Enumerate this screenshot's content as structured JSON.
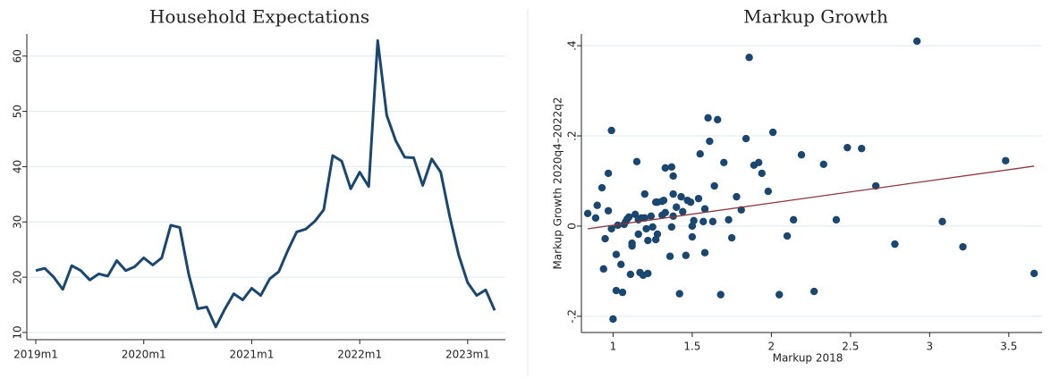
{
  "chart_data": [
    {
      "type": "line",
      "title": "Household Expectations",
      "categories": [
        "2019m1",
        null,
        null,
        null,
        null,
        null,
        null,
        null,
        null,
        null,
        null,
        null,
        "2020m1",
        null,
        null,
        null,
        null,
        null,
        null,
        null,
        null,
        null,
        null,
        null,
        "2021m1",
        null,
        null,
        null,
        null,
        null,
        null,
        null,
        null,
        null,
        null,
        null,
        "2022m1",
        null,
        null,
        null,
        null,
        null,
        null,
        null,
        null,
        null,
        null,
        null,
        "2023m1",
        null,
        null,
        null
      ],
      "values": [
        21.2,
        21.6,
        20,
        17.8,
        22.1,
        21.2,
        19.5,
        20.6,
        20.2,
        23,
        21.2,
        21.9,
        23.5,
        22.2,
        23.5,
        29.4,
        29,
        20.5,
        14.3,
        14.6,
        11,
        14.2,
        17,
        15.9,
        18,
        16.7,
        19.7,
        21,
        24.8,
        28.2,
        28.7,
        30.1,
        32.2,
        42,
        41,
        36,
        39,
        36.4,
        62.8,
        49.3,
        44.7,
        41.7,
        41.6,
        36.6,
        41.4,
        39,
        31,
        24,
        19,
        16.7,
        17.7,
        14
      ],
      "color": "#1a476f",
      "ylim": [
        8.7,
        64
      ],
      "yticks": [
        10,
        20,
        30,
        40,
        50,
        60
      ],
      "grid": true
    },
    {
      "type": "scatter",
      "title": "Markup Growth",
      "x_label": "Markup 2018",
      "y_label": "Markup Growth 2020q4–2022q2",
      "x": [
        0.84,
        0.89,
        0.9,
        0.93,
        0.95,
        0.94,
        0.97,
        0.97,
        0.99,
        0.99,
        1.0,
        1.02,
        1.02,
        1.05,
        1.03,
        1.07,
        1.06,
        1.08,
        1.09,
        1.1,
        1.11,
        1.12,
        1.12,
        1.14,
        1.15,
        1.16,
        1.16,
        1.17,
        1.18,
        1.2,
        1.19,
        1.2,
        1.22,
        1.21,
        1.22,
        1.24,
        1.25,
        1.27,
        1.27,
        1.28,
        1.28,
        1.31,
        1.31,
        1.32,
        1.33,
        1.33,
        1.36,
        1.37,
        1.37,
        1.38,
        1.38,
        1.38,
        1.4,
        1.42,
        1.43,
        1.44,
        1.46,
        1.47,
        1.49,
        1.5,
        1.5,
        1.51,
        1.54,
        1.55,
        1.57,
        1.58,
        1.58,
        1.6,
        1.61,
        1.63,
        1.64,
        1.66,
        1.68,
        1.7,
        1.73,
        1.75,
        1.78,
        1.81,
        1.84,
        1.86,
        1.89,
        1.92,
        1.94,
        1.98,
        2.01,
        2.05,
        2.1,
        2.14,
        2.19,
        2.27,
        2.33,
        2.41,
        2.48,
        2.57,
        2.66,
        2.78,
        2.92,
        3.08,
        3.21,
        3.48,
        3.66
      ],
      "values": [
        0.028,
        0.018,
        0.046,
        0.085,
        -0.028,
        -0.095,
        0.117,
        0.034,
        0.212,
        -0.006,
        -0.206,
        -0.063,
        -0.143,
        -0.085,
        0.002,
        0.004,
        -0.147,
        0.01,
        0.016,
        0.02,
        -0.107,
        -0.038,
        -0.044,
        0.026,
        0.143,
        0.014,
        -0.018,
        -0.103,
        0.018,
        0.018,
        -0.109,
        0.071,
        -0.105,
        -0.006,
        -0.032,
        0.022,
        -0.002,
        0.053,
        -0.03,
        -0.018,
        0.053,
        0.055,
        0.024,
        0.057,
        0.03,
        0.129,
        -0.067,
        -0.002,
        0.131,
        0.111,
        0.022,
        0.071,
        0.042,
        -0.15,
        0.065,
        0.032,
        -0.065,
        0.057,
        0.053,
        -0.024,
        0.0,
        0.012,
        0.061,
        0.16,
        0.01,
        -0.059,
        0.038,
        0.24,
        0.188,
        0.01,
        0.089,
        0.236,
        -0.152,
        0.141,
        0.014,
        -0.026,
        0.065,
        0.036,
        0.194,
        0.374,
        0.135,
        0.141,
        0.117,
        0.077,
        0.208,
        -0.152,
        -0.022,
        0.014,
        0.158,
        -0.145,
        0.137,
        0.014,
        0.174,
        0.172,
        0.089,
        -0.04,
        0.41,
        0.01,
        -0.046,
        0.145,
        -0.105
      ],
      "color": "#1a476f",
      "fit": {
        "x": [
          0.84,
          3.66
        ],
        "values": [
          -0.006,
          0.133
        ],
        "color": "#90353b"
      },
      "xlim": [
        0.8,
        3.71
      ],
      "ylim": [
        -0.236,
        0.426
      ],
      "xticks": [
        1,
        1.5,
        2,
        2.5,
        3,
        3.5
      ],
      "yticks": [
        {
          "value": -0.2,
          "label": "-.2"
        },
        0,
        {
          "value": 0.2,
          "label": ".2"
        },
        {
          "value": 0.4,
          "label": ".4"
        }
      ],
      "grid": true
    }
  ]
}
